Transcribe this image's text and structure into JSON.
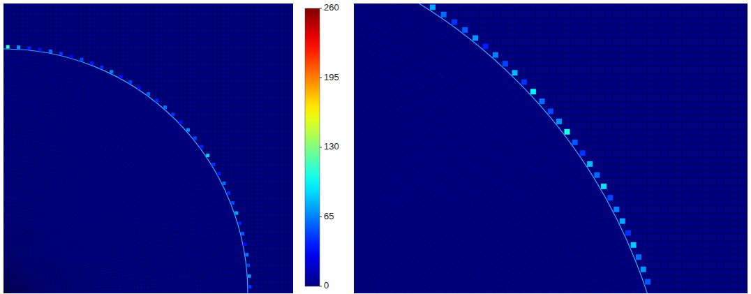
{
  "chart_data": {
    "type": "heatmap",
    "tick_labels": false,
    "colorbar": {
      "range": [
        0,
        260
      ],
      "ticks": [
        0,
        65,
        130,
        195,
        260
      ]
    },
    "panels": [
      {
        "x": [
          89,
          86.5,
          84,
          81.5,
          79,
          76.5,
          74,
          71.5,
          69,
          66.5,
          64,
          61.5,
          59,
          56.5,
          54,
          51.5,
          49,
          46.5,
          44,
          41.5,
          39,
          36.5,
          34,
          31.5,
          29,
          26.5,
          24,
          21.5,
          19,
          16.5,
          14,
          11.5,
          9,
          6.5,
          4,
          1.5
        ],
        "values": [
          110,
          70,
          40,
          35,
          60,
          45,
          30,
          50,
          38,
          42,
          65,
          35,
          48,
          30,
          55,
          40,
          60,
          45,
          35,
          70,
          50,
          40,
          85,
          45,
          38,
          60,
          42,
          50,
          75,
          40,
          55,
          35,
          62,
          48,
          70,
          45
        ]
      },
      {
        "x": [
          57,
          55.6,
          54.2,
          52.8,
          51.4,
          50,
          48.6,
          47.2,
          45.8,
          44.4,
          43,
          41.6,
          40.2,
          38.8,
          37.4,
          36,
          34.6,
          33.2,
          31.8,
          30.4,
          29,
          27.6,
          26.2,
          24.8,
          23.4,
          22,
          20.6,
          19.2
        ],
        "values": [
          75,
          60,
          45,
          55,
          70,
          40,
          65,
          50,
          80,
          45,
          95,
          60,
          50,
          70,
          105,
          55,
          45,
          80,
          60,
          90,
          50,
          65,
          75,
          45,
          85,
          60,
          70,
          55
        ]
      }
    ]
  }
}
